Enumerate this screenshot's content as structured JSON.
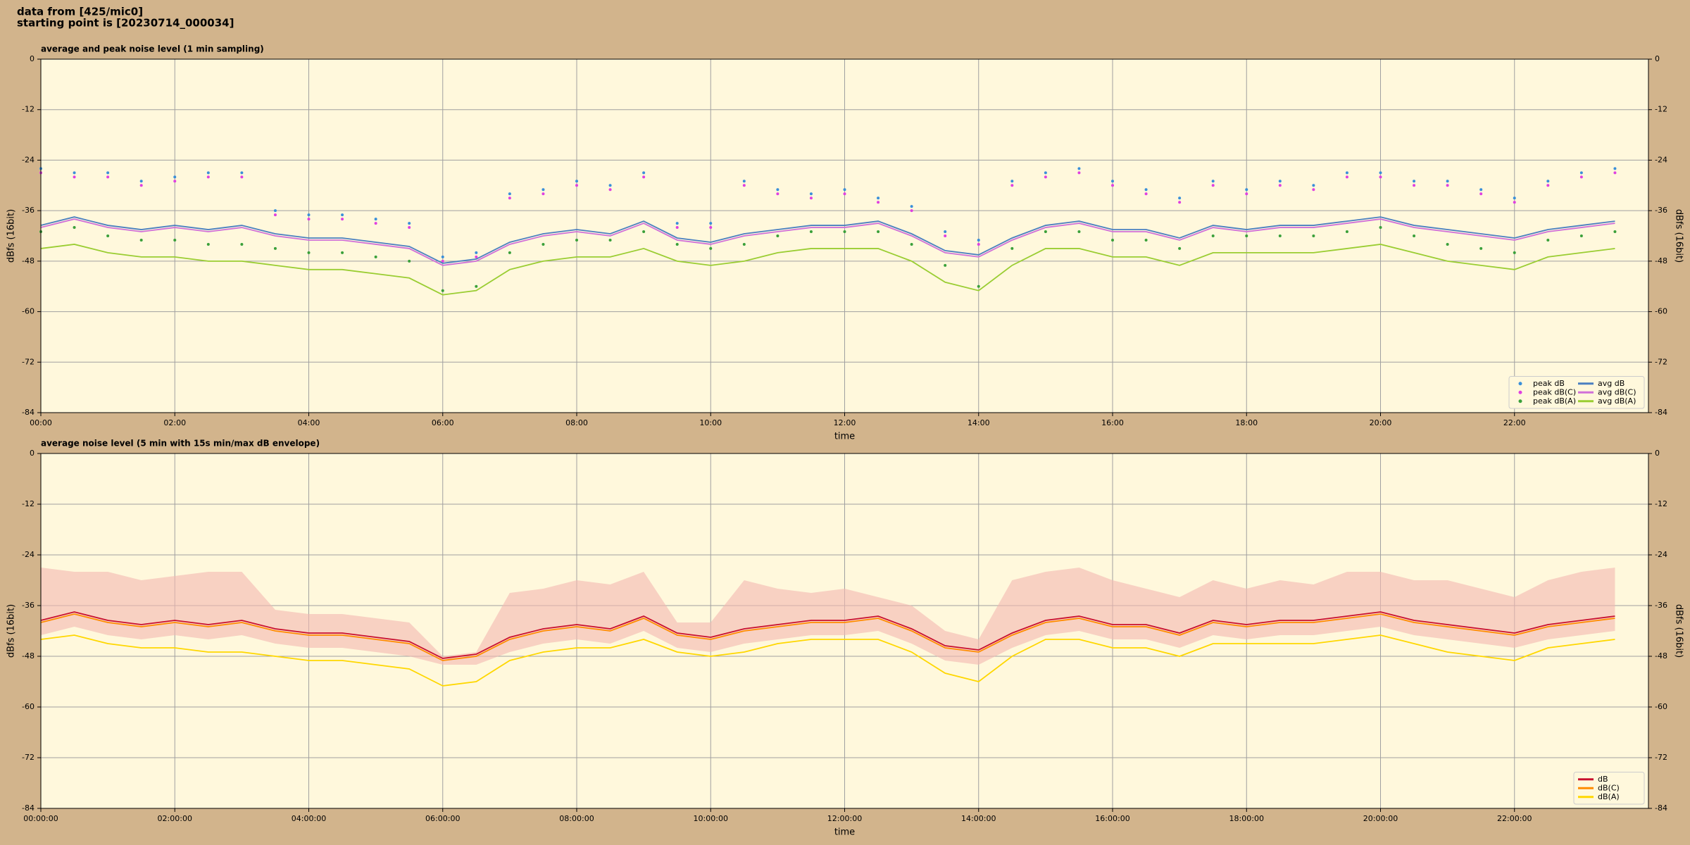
{
  "header": {
    "line1": "data from [425/mic0]",
    "line2": "starting point is [20230714_000034]"
  },
  "chart_data": [
    {
      "type": "line",
      "title": "average and peak noise level (1 min sampling)",
      "xlabel": "time",
      "ylabel": "dBfs (16bit)",
      "x": [
        0,
        0.5,
        1,
        1.5,
        2,
        2.5,
        3,
        3.5,
        4,
        4.5,
        5,
        5.5,
        6,
        6.5,
        7,
        7.5,
        8,
        8.5,
        9,
        9.5,
        10,
        10.5,
        11,
        11.5,
        12,
        12.5,
        13,
        13.5,
        14,
        14.5,
        15,
        15.5,
        16,
        16.5,
        17,
        17.5,
        18,
        18.5,
        19,
        19.5,
        20,
        20.5,
        21,
        21.5,
        22,
        22.5,
        23,
        23.5
      ],
      "xlim": [
        0,
        24
      ],
      "ylim": [
        -84,
        0
      ],
      "yticks": [
        0,
        -12,
        -24,
        -36,
        -48,
        -60,
        -72,
        -84
      ],
      "xticks": [
        {
          "value": 0,
          "label": "00:00"
        },
        {
          "value": 2,
          "label": "02:00"
        },
        {
          "value": 4,
          "label": "04:00"
        },
        {
          "value": 6,
          "label": "06:00"
        },
        {
          "value": 8,
          "label": "08:00"
        },
        {
          "value": 10,
          "label": "10:00"
        },
        {
          "value": 12,
          "label": "12:00"
        },
        {
          "value": 14,
          "label": "14:00"
        },
        {
          "value": 16,
          "label": "16:00"
        },
        {
          "value": 18,
          "label": "18:00"
        },
        {
          "value": 20,
          "label": "20:00"
        },
        {
          "value": 22,
          "label": "22:00"
        }
      ],
      "grid": true,
      "legend": "lower right",
      "series": [
        {
          "name": "peak dB",
          "style": "scatter",
          "color": "#3a8fd9",
          "values": [
            -26,
            -27,
            -27,
            -29,
            -28,
            -27,
            -27,
            -36,
            -37,
            -37,
            -38,
            -39,
            -47,
            -46,
            -32,
            -31,
            -29,
            -30,
            -27,
            -39,
            -39,
            -29,
            -31,
            -32,
            -31,
            -33,
            -35,
            -41,
            -43,
            -29,
            -27,
            -26,
            -29,
            -31,
            -33,
            -29,
            -31,
            -29,
            -30,
            -27,
            -27,
            -29,
            -29,
            -31,
            -33,
            -29,
            -27,
            -26
          ]
        },
        {
          "name": "peak dB(C)",
          "style": "scatter",
          "color": "#e040e0",
          "values": [
            -27,
            -28,
            -28,
            -30,
            -29,
            -28,
            -28,
            -37,
            -38,
            -38,
            -39,
            -40,
            -48,
            -47,
            -33,
            -32,
            -30,
            -31,
            -28,
            -40,
            -40,
            -30,
            -32,
            -33,
            -32,
            -34,
            -36,
            -42,
            -44,
            -30,
            -28,
            -27,
            -30,
            -32,
            -34,
            -30,
            -32,
            -30,
            -31,
            -28,
            -28,
            -30,
            -30,
            -32,
            -34,
            -30,
            -28,
            -27
          ]
        },
        {
          "name": "peak dB(A)",
          "style": "scatter",
          "color": "#3aa03a",
          "values": [
            -41,
            -40,
            -42,
            -43,
            -43,
            -44,
            -44,
            -45,
            -46,
            -46,
            -47,
            -48,
            -55,
            -54,
            -46,
            -44,
            -43,
            -43,
            -41,
            -44,
            -45,
            -44,
            -42,
            -41,
            -41,
            -41,
            -44,
            -49,
            -54,
            -45,
            -41,
            -41,
            -43,
            -43,
            -45,
            -42,
            -42,
            -42,
            -42,
            -41,
            -40,
            -42,
            -44,
            -45,
            -46,
            -43,
            -42,
            -41
          ]
        },
        {
          "name": "avg dB",
          "style": "line",
          "color": "#4a7fc0",
          "values": [
            -39.5,
            -37.5,
            -39.5,
            -40.5,
            -39.5,
            -40.5,
            -39.5,
            -41.5,
            -42.5,
            -42.5,
            -43.5,
            -44.5,
            -48.5,
            -47.5,
            -43.5,
            -41.5,
            -40.5,
            -41.5,
            -38.5,
            -42.5,
            -43.5,
            -41.5,
            -40.5,
            -39.5,
            -39.5,
            -38.5,
            -41.5,
            -45.5,
            -46.5,
            -42.5,
            -39.5,
            -38.5,
            -40.5,
            -40.5,
            -42.5,
            -39.5,
            -40.5,
            -39.5,
            -39.5,
            -38.5,
            -37.5,
            -39.5,
            -40.5,
            -41.5,
            -42.5,
            -40.5,
            -39.5,
            -38.5
          ]
        },
        {
          "name": "avg dB(C)",
          "style": "line",
          "color": "#d070d8",
          "values": [
            -40,
            -38,
            -40,
            -41,
            -40,
            -41,
            -40,
            -42,
            -43,
            -43,
            -44,
            -45,
            -49,
            -48,
            -44,
            -42,
            -41,
            -42,
            -39,
            -43,
            -44,
            -42,
            -41,
            -40,
            -40,
            -39,
            -42,
            -46,
            -47,
            -43,
            -40,
            -39,
            -41,
            -41,
            -43,
            -40,
            -41,
            -40,
            -40,
            -39,
            -38,
            -40,
            -41,
            -42,
            -43,
            -41,
            -40,
            -39
          ]
        },
        {
          "name": "avg dB(A)",
          "style": "line",
          "color": "#9acd32",
          "values": [
            -45,
            -44,
            -46,
            -47,
            -47,
            -48,
            -48,
            -49,
            -50,
            -50,
            -51,
            -52,
            -56,
            -55,
            -50,
            -48,
            -47,
            -47,
            -45,
            -48,
            -49,
            -48,
            -46,
            -45,
            -45,
            -45,
            -48,
            -53,
            -55,
            -49,
            -45,
            -45,
            -47,
            -47,
            -49,
            -46,
            -46,
            -46,
            -46,
            -45,
            -44,
            -46,
            -48,
            -49,
            -50,
            -47,
            -46,
            -45
          ]
        }
      ]
    },
    {
      "type": "line",
      "title": "average noise level (5 min with 15s min/max dB envelope)",
      "xlabel": "time",
      "ylabel": "dBfs (16bit)",
      "x": [
        0,
        0.5,
        1,
        1.5,
        2,
        2.5,
        3,
        3.5,
        4,
        4.5,
        5,
        5.5,
        6,
        6.5,
        7,
        7.5,
        8,
        8.5,
        9,
        9.5,
        10,
        10.5,
        11,
        11.5,
        12,
        12.5,
        13,
        13.5,
        14,
        14.5,
        15,
        15.5,
        16,
        16.5,
        17,
        17.5,
        18,
        18.5,
        19,
        19.5,
        20,
        20.5,
        21,
        21.5,
        22,
        22.5,
        23,
        23.5
      ],
      "xlim": [
        0,
        24
      ],
      "ylim": [
        -84,
        0
      ],
      "yticks": [
        0,
        -12,
        -24,
        -36,
        -48,
        -60,
        -72,
        -84
      ],
      "xticks": [
        {
          "value": 0,
          "label": "00:00:00"
        },
        {
          "value": 2,
          "label": "02:00:00"
        },
        {
          "value": 4,
          "label": "04:00:00"
        },
        {
          "value": 6,
          "label": "06:00:00"
        },
        {
          "value": 8,
          "label": "08:00:00"
        },
        {
          "value": 10,
          "label": "10:00:00"
        },
        {
          "value": 12,
          "label": "12:00:00"
        },
        {
          "value": 14,
          "label": "14:00:00"
        },
        {
          "value": 16,
          "label": "16:00:00"
        },
        {
          "value": 18,
          "label": "18:00:00"
        },
        {
          "value": 20,
          "label": "20:00:00"
        },
        {
          "value": 22,
          "label": "22:00:00"
        }
      ],
      "grid": true,
      "legend": "lower right",
      "envelope": {
        "color": "#f4b8b0",
        "high": [
          -27,
          -28,
          -28,
          -30,
          -29,
          -28,
          -28,
          -37,
          -38,
          -38,
          -39,
          -40,
          -48,
          -47,
          -33,
          -32,
          -30,
          -31,
          -28,
          -40,
          -40,
          -30,
          -32,
          -33,
          -32,
          -34,
          -36,
          -42,
          -44,
          -30,
          -28,
          -27,
          -30,
          -32,
          -34,
          -30,
          -32,
          -30,
          -31,
          -28,
          -28,
          -30,
          -30,
          -32,
          -34,
          -30,
          -28,
          -27
        ],
        "low": [
          -43,
          -41,
          -43,
          -44,
          -43,
          -44,
          -43,
          -45,
          -46,
          -46,
          -47,
          -48,
          -50,
          -50,
          -47,
          -45,
          -44,
          -45,
          -42,
          -46,
          -47,
          -45,
          -44,
          -43,
          -43,
          -42,
          -45,
          -49,
          -50,
          -46,
          -43,
          -42,
          -44,
          -44,
          -46,
          -43,
          -44,
          -43,
          -43,
          -42,
          -41,
          -43,
          -44,
          -45,
          -46,
          -44,
          -43,
          -42
        ]
      },
      "series": [
        {
          "name": "dB",
          "color": "#c8102e",
          "values": [
            -39.5,
            -37.5,
            -39.5,
            -40.5,
            -39.5,
            -40.5,
            -39.5,
            -41.5,
            -42.5,
            -42.5,
            -43.5,
            -44.5,
            -48.5,
            -47.5,
            -43.5,
            -41.5,
            -40.5,
            -41.5,
            -38.5,
            -42.5,
            -43.5,
            -41.5,
            -40.5,
            -39.5,
            -39.5,
            -38.5,
            -41.5,
            -45.5,
            -46.5,
            -42.5,
            -39.5,
            -38.5,
            -40.5,
            -40.5,
            -42.5,
            -39.5,
            -40.5,
            -39.5,
            -39.5,
            -38.5,
            -37.5,
            -39.5,
            -40.5,
            -41.5,
            -42.5,
            -40.5,
            -39.5,
            -38.5
          ]
        },
        {
          "name": "dB(C)",
          "color": "#ff8c00",
          "values": [
            -40,
            -38,
            -40,
            -41,
            -40,
            -41,
            -40,
            -42,
            -43,
            -43,
            -44,
            -45,
            -49,
            -48,
            -44,
            -42,
            -41,
            -42,
            -39,
            -43,
            -44,
            -42,
            -41,
            -40,
            -40,
            -39,
            -42,
            -46,
            -47,
            -43,
            -40,
            -39,
            -41,
            -41,
            -43,
            -40,
            -41,
            -40,
            -40,
            -39,
            -38,
            -40,
            -41,
            -42,
            -43,
            -41,
            -40,
            -39
          ]
        },
        {
          "name": "dB(A)",
          "color": "#ffd700",
          "values": [
            -44,
            -43,
            -45,
            -46,
            -46,
            -47,
            -47,
            -48,
            -49,
            -49,
            -50,
            -51,
            -55,
            -54,
            -49,
            -47,
            -46,
            -46,
            -44,
            -47,
            -48,
            -47,
            -45,
            -44,
            -44,
            -44,
            -47,
            -52,
            -54,
            -48,
            -44,
            -44,
            -46,
            -46,
            -48,
            -45,
            -45,
            -45,
            -45,
            -44,
            -43,
            -45,
            -47,
            -48,
            -49,
            -46,
            -45,
            -44
          ]
        }
      ]
    }
  ]
}
